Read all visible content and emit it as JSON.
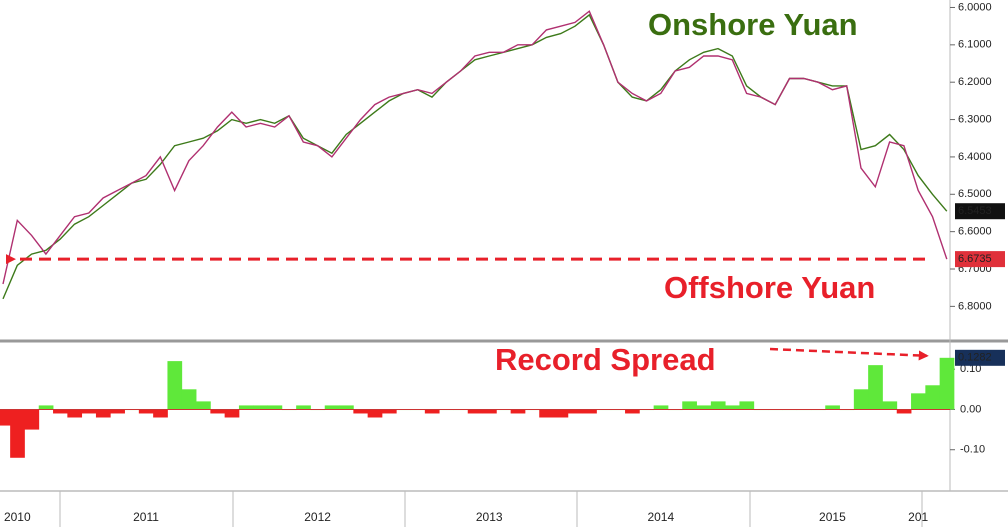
{
  "chart_data": [
    {
      "type": "line",
      "ylim": [
        6.89,
        5.98
      ],
      "yticks": [
        {
          "value": 6.0,
          "label": "6.0000"
        },
        {
          "value": 6.1,
          "label": "6.1000"
        },
        {
          "value": 6.2,
          "label": "6.2000"
        },
        {
          "value": 6.3,
          "label": "6.3000"
        },
        {
          "value": 6.4,
          "label": "6.4000"
        },
        {
          "value": 6.5,
          "label": "6.5000"
        },
        {
          "value": 6.6,
          "label": "6.6000"
        },
        {
          "value": 6.7,
          "label": "6.7000"
        },
        {
          "value": 6.8,
          "label": "6.8000"
        }
      ],
      "series": [
        {
          "name": "Onshore Yuan",
          "color": "#3d7a1a",
          "label_color": "#3a6e10",
          "values": [
            6.78,
            6.69,
            6.66,
            6.65,
            6.62,
            6.58,
            6.56,
            6.53,
            6.5,
            6.47,
            6.46,
            6.42,
            6.37,
            6.36,
            6.35,
            6.33,
            6.3,
            6.31,
            6.3,
            6.31,
            6.29,
            6.35,
            6.37,
            6.39,
            6.34,
            6.31,
            6.28,
            6.25,
            6.23,
            6.22,
            6.24,
            6.2,
            6.17,
            6.14,
            6.13,
            6.12,
            6.11,
            6.1,
            6.08,
            6.07,
            6.05,
            6.02,
            6.1,
            6.2,
            6.24,
            6.25,
            6.22,
            6.17,
            6.14,
            6.12,
            6.11,
            6.13,
            6.21,
            6.24,
            6.26,
            6.19,
            6.19,
            6.2,
            6.21,
            6.21,
            6.38,
            6.37,
            6.34,
            6.38,
            6.45,
            6.5,
            6.5453
          ]
        },
        {
          "name": "Offshore Yuan",
          "color": "#b03070",
          "label_color": "#e8202a",
          "values": [
            6.74,
            6.57,
            6.61,
            6.66,
            6.61,
            6.56,
            6.55,
            6.51,
            6.49,
            6.47,
            6.45,
            6.4,
            6.49,
            6.41,
            6.37,
            6.32,
            6.28,
            6.32,
            6.31,
            6.32,
            6.29,
            6.36,
            6.37,
            6.4,
            6.35,
            6.3,
            6.26,
            6.24,
            6.23,
            6.22,
            6.23,
            6.2,
            6.17,
            6.13,
            6.12,
            6.12,
            6.1,
            6.1,
            6.06,
            6.05,
            6.04,
            6.01,
            6.1,
            6.2,
            6.23,
            6.25,
            6.23,
            6.17,
            6.16,
            6.13,
            6.13,
            6.14,
            6.23,
            6.24,
            6.26,
            6.19,
            6.19,
            6.2,
            6.22,
            6.21,
            6.43,
            6.48,
            6.36,
            6.37,
            6.49,
            6.56,
            6.6735
          ]
        }
      ]
    },
    {
      "type": "bar",
      "annotation": "Record Spread",
      "color_positive": "#5fe83a",
      "color_negative": "#ee2020",
      "label_color": "#17305a",
      "ylim": [
        -0.2,
        0.16
      ],
      "yticks": [
        {
          "value": 0.1,
          "label": "0.10"
        },
        {
          "value": 0,
          "label": "0.00"
        },
        {
          "value": -0.1,
          "label": "-0.10"
        }
      ],
      "categories": [
        null,
        "2010",
        null,
        null,
        null,
        null,
        null,
        null,
        null,
        null,
        "2011",
        null,
        null,
        null,
        null,
        null,
        null,
        null,
        null,
        null,
        null,
        null,
        "2012",
        null,
        null,
        null,
        null,
        null,
        null,
        null,
        null,
        null,
        null,
        null,
        "2013",
        null,
        null,
        null,
        null,
        null,
        null,
        null,
        null,
        null,
        null,
        null,
        "2014",
        null,
        null,
        null,
        null,
        null,
        null,
        null,
        null,
        null,
        null,
        null,
        "2015",
        null,
        null,
        null,
        null,
        null,
        "201",
        null,
        null
      ],
      "values": [
        -0.04,
        -0.12,
        -0.05,
        0.01,
        -0.01,
        -0.02,
        -0.01,
        -0.02,
        -0.01,
        0.0,
        -0.01,
        -0.02,
        0.12,
        0.05,
        0.02,
        -0.01,
        -0.02,
        0.01,
        0.01,
        0.01,
        0.0,
        0.01,
        0.0,
        0.01,
        0.01,
        -0.01,
        -0.02,
        -0.01,
        0.0,
        0.0,
        -0.01,
        0.0,
        0.0,
        -0.01,
        -0.01,
        0.0,
        -0.01,
        0.0,
        -0.02,
        -0.02,
        -0.01,
        -0.01,
        0.0,
        0.0,
        -0.01,
        0.0,
        0.01,
        0.0,
        0.02,
        0.01,
        0.02,
        0.01,
        0.02,
        0.0,
        0.0,
        0.0,
        0.0,
        0.0,
        0.01,
        0.0,
        0.05,
        0.11,
        0.02,
        -0.01,
        0.04,
        0.06,
        0.1282
      ]
    }
  ]
}
